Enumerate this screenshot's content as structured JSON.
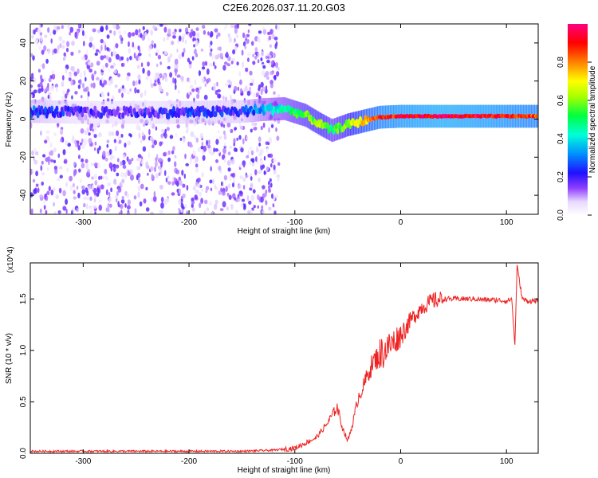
{
  "title": "C2E6.2026.037.11.20.G03",
  "chart_data": [
    {
      "type": "heatmap",
      "xlabel": "Height of straight line (km)",
      "ylabel": "Frequency (Hz)",
      "xlim": [
        -350,
        130
      ],
      "ylim": [
        -50,
        50
      ],
      "xticks": [
        -300,
        -200,
        -100,
        0,
        100
      ],
      "yticks": [
        -40,
        -20,
        0,
        20,
        40
      ],
      "colorbar": {
        "label": "Normalized spectral amplitude",
        "range": [
          0,
          1
        ],
        "ticks": [
          "0.0",
          "0.2",
          "0.4",
          "0.6",
          "0.8"
        ],
        "colormap": [
          "#ffffff",
          "#dcc8ff",
          "#7a00ff",
          "#2200ff",
          "#00a0ff",
          "#00ffd0",
          "#00ff00",
          "#c0ff00",
          "#ffff00",
          "#ff8000",
          "#ff0000",
          "#ff0080"
        ]
      },
      "ridge": [
        {
          "x": -350,
          "f": 4.0,
          "a": 0.25
        },
        {
          "x": -300,
          "f": 3.5,
          "a": 0.18
        },
        {
          "x": -250,
          "f": 3.5,
          "a": 0.18
        },
        {
          "x": -200,
          "f": 3.5,
          "a": 0.22
        },
        {
          "x": -150,
          "f": 4.0,
          "a": 0.22
        },
        {
          "x": -130,
          "f": 5.0,
          "a": 0.35
        },
        {
          "x": -110,
          "f": 5.5,
          "a": 0.45
        },
        {
          "x": -90,
          "f": 2.0,
          "a": 0.55
        },
        {
          "x": -75,
          "f": -3.0,
          "a": 0.6
        },
        {
          "x": -65,
          "f": -6.0,
          "a": 0.5
        },
        {
          "x": -50,
          "f": -3.0,
          "a": 0.6
        },
        {
          "x": -35,
          "f": -1.0,
          "a": 0.75
        },
        {
          "x": -20,
          "f": 1.0,
          "a": 0.85
        },
        {
          "x": 0,
          "f": 1.5,
          "a": 0.9
        },
        {
          "x": 40,
          "f": 1.5,
          "a": 0.95
        },
        {
          "x": 90,
          "f": 1.5,
          "a": 0.9
        },
        {
          "x": 130,
          "f": 1.5,
          "a": 0.85
        }
      ],
      "noise": {
        "x_range": [
          -350,
          -115
        ],
        "f_range": [
          -50,
          50
        ],
        "level": 0.08
      }
    },
    {
      "type": "line",
      "xlabel": "Height of straight line (km)",
      "ylabel": "SNR (10 * v/v)",
      "y_scale_note": "(x10^4)",
      "xlim": [
        -350,
        130
      ],
      "ylim": [
        0,
        1.85
      ],
      "xticks": [
        -300,
        -200,
        -100,
        0,
        100
      ],
      "yticks": [
        "0.0",
        "0.5",
        "1.0",
        "1.5"
      ],
      "line_color": "#ee2222",
      "series": [
        {
          "name": "SNR",
          "x": [
            -350,
            -300,
            -250,
            -200,
            -150,
            -120,
            -100,
            -90,
            -80,
            -70,
            -60,
            -55,
            -50,
            -45,
            -40,
            -35,
            -30,
            -25,
            -20,
            -15,
            -10,
            -5,
            0,
            10,
            20,
            30,
            40,
            50,
            60,
            70,
            80,
            90,
            100,
            105,
            108,
            110,
            115,
            120,
            130
          ],
          "y": [
            0.02,
            0.02,
            0.02,
            0.02,
            0.02,
            0.03,
            0.05,
            0.1,
            0.15,
            0.28,
            0.45,
            0.25,
            0.12,
            0.3,
            0.55,
            0.65,
            0.8,
            0.9,
            0.95,
            1.0,
            1.05,
            1.1,
            1.15,
            1.3,
            1.42,
            1.48,
            1.5,
            1.5,
            1.5,
            1.5,
            1.49,
            1.49,
            1.48,
            1.5,
            1.05,
            1.82,
            1.5,
            1.48,
            1.48
          ]
        }
      ]
    }
  ]
}
